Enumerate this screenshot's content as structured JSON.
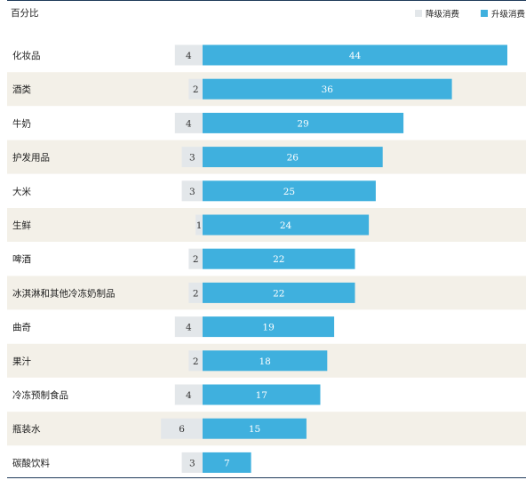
{
  "chart_data": {
    "type": "bar",
    "orientation": "horizontal-diverging",
    "unit_label": "百分比",
    "categories": [
      "化妆品",
      "酒类",
      "牛奶",
      "护发用品",
      "大米",
      "生鲜",
      "啤酒",
      "冰淇淋和其他冷冻奶制品",
      "曲奇",
      "果汁",
      "冷冻预制食品",
      "瓶装水",
      "碳酸饮料"
    ],
    "series": [
      {
        "name": "降级消费",
        "color": "#e3e7ea",
        "values": [
          4,
          2,
          4,
          3,
          3,
          1,
          2,
          2,
          4,
          2,
          4,
          6,
          3
        ]
      },
      {
        "name": "升级消费",
        "color": "#3fb0de",
        "values": [
          44,
          36,
          29,
          26,
          25,
          24,
          22,
          22,
          19,
          18,
          17,
          15,
          7
        ]
      }
    ],
    "legend_position": "top-right",
    "row_band_color": "#f3f0e8",
    "grid": false
  }
}
